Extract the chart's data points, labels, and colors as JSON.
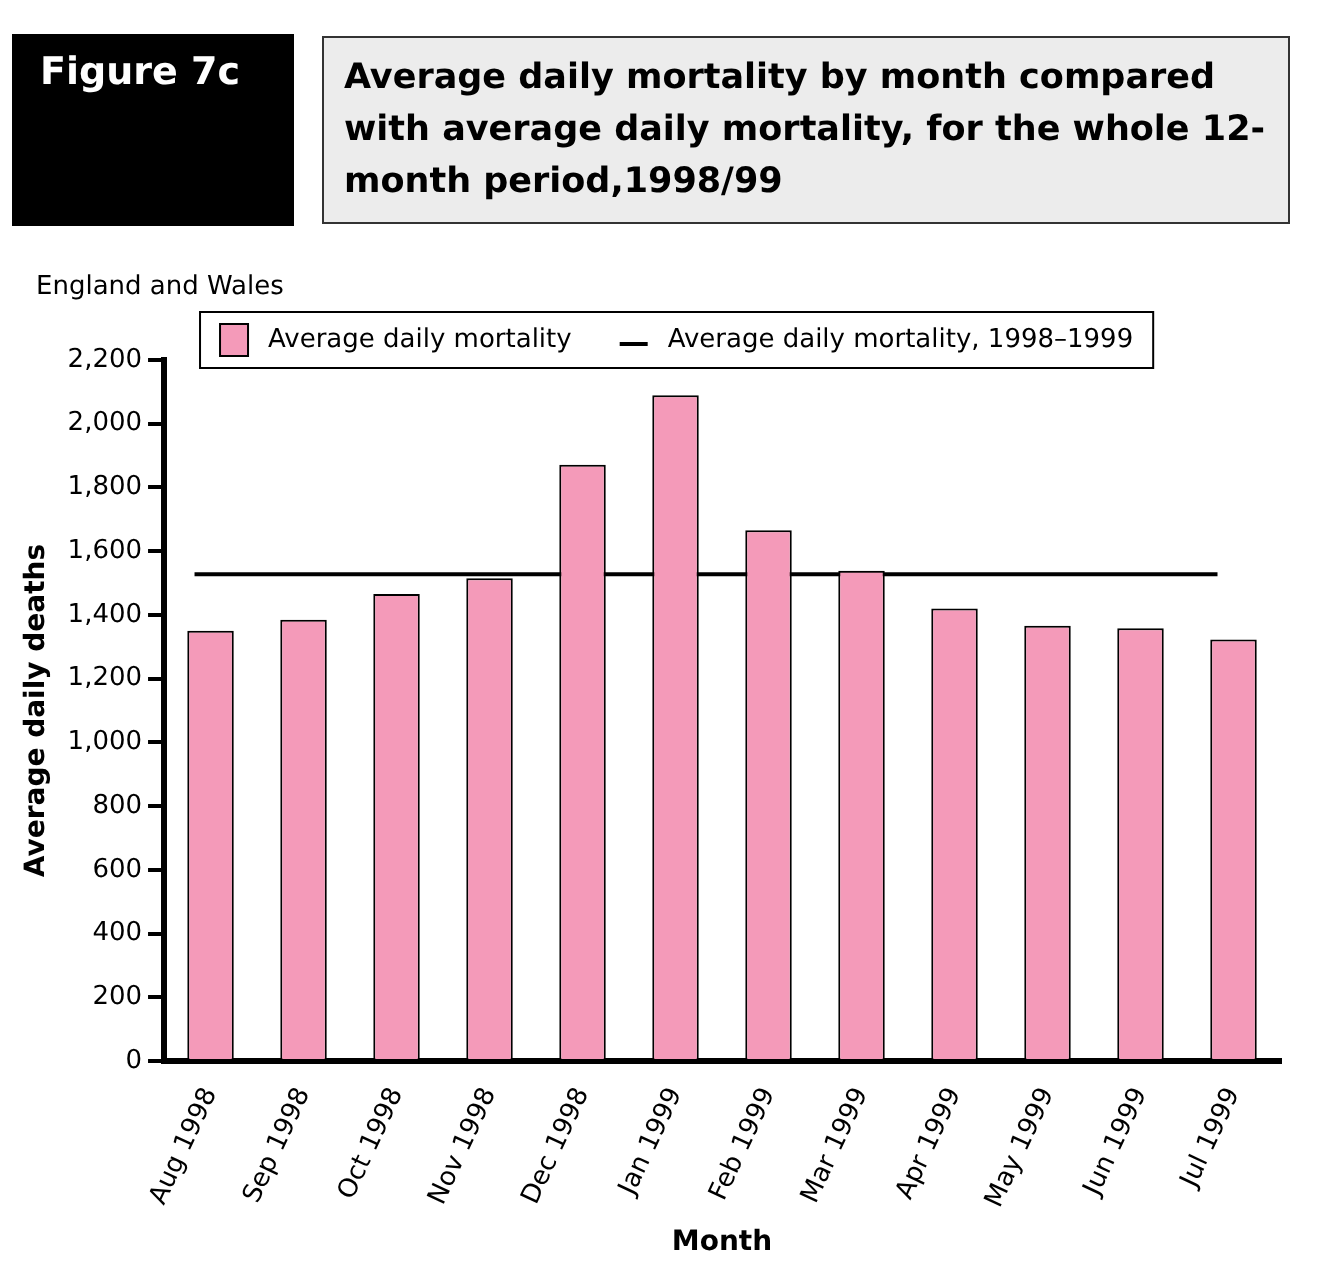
{
  "chart_data": {
    "type": "bar",
    "title": "Average daily mortality by month compared with average daily mortality, for the whole 12-month period,1998/99",
    "subtitle": "England and Wales",
    "annotations": [
      "Figure 7c"
    ],
    "xlabel": "Month",
    "ylabel": "Average daily deaths",
    "categories": [
      "Aug 1998",
      "Sep 1998",
      "Oct 1998",
      "Nov 1998",
      "Dec 1998",
      "Jan 1999",
      "Feb 1999",
      "Mar 1999",
      "Apr 1999",
      "May 1999",
      "Jun 1999",
      "Jul 1999"
    ],
    "series": [
      {
        "name": "Average daily mortality",
        "color": "#f49ab9",
        "values": [
          1350,
          1385,
          1466,
          1515,
          1871,
          2089,
          1666,
          1539,
          1420,
          1366,
          1358,
          1323
        ]
      }
    ],
    "ylim": [
      0,
      2200
    ],
    "yticks": [
      {
        "value": 0,
        "label": "0"
      },
      {
        "value": 200,
        "label": "200"
      },
      {
        "value": 400,
        "label": "400"
      },
      {
        "value": 600,
        "label": "600"
      },
      {
        "value": 800,
        "label": "800"
      },
      {
        "value": 1000,
        "label": "1,000"
      },
      {
        "value": 1200,
        "label": "1,200"
      },
      {
        "value": 1400,
        "label": "1,400"
      },
      {
        "value": 1600,
        "label": "1,600"
      },
      {
        "value": 1800,
        "label": "1,800"
      },
      {
        "value": 2000,
        "label": "2,000"
      },
      {
        "value": 2200,
        "label": "2,200"
      }
    ],
    "ref_lines": [
      {
        "axis": "y",
        "value": 1528,
        "label": "Average daily mortality, 1998–1999",
        "color": "#000000",
        "line_style": "solid"
      }
    ],
    "grid": false,
    "legend": "top"
  }
}
